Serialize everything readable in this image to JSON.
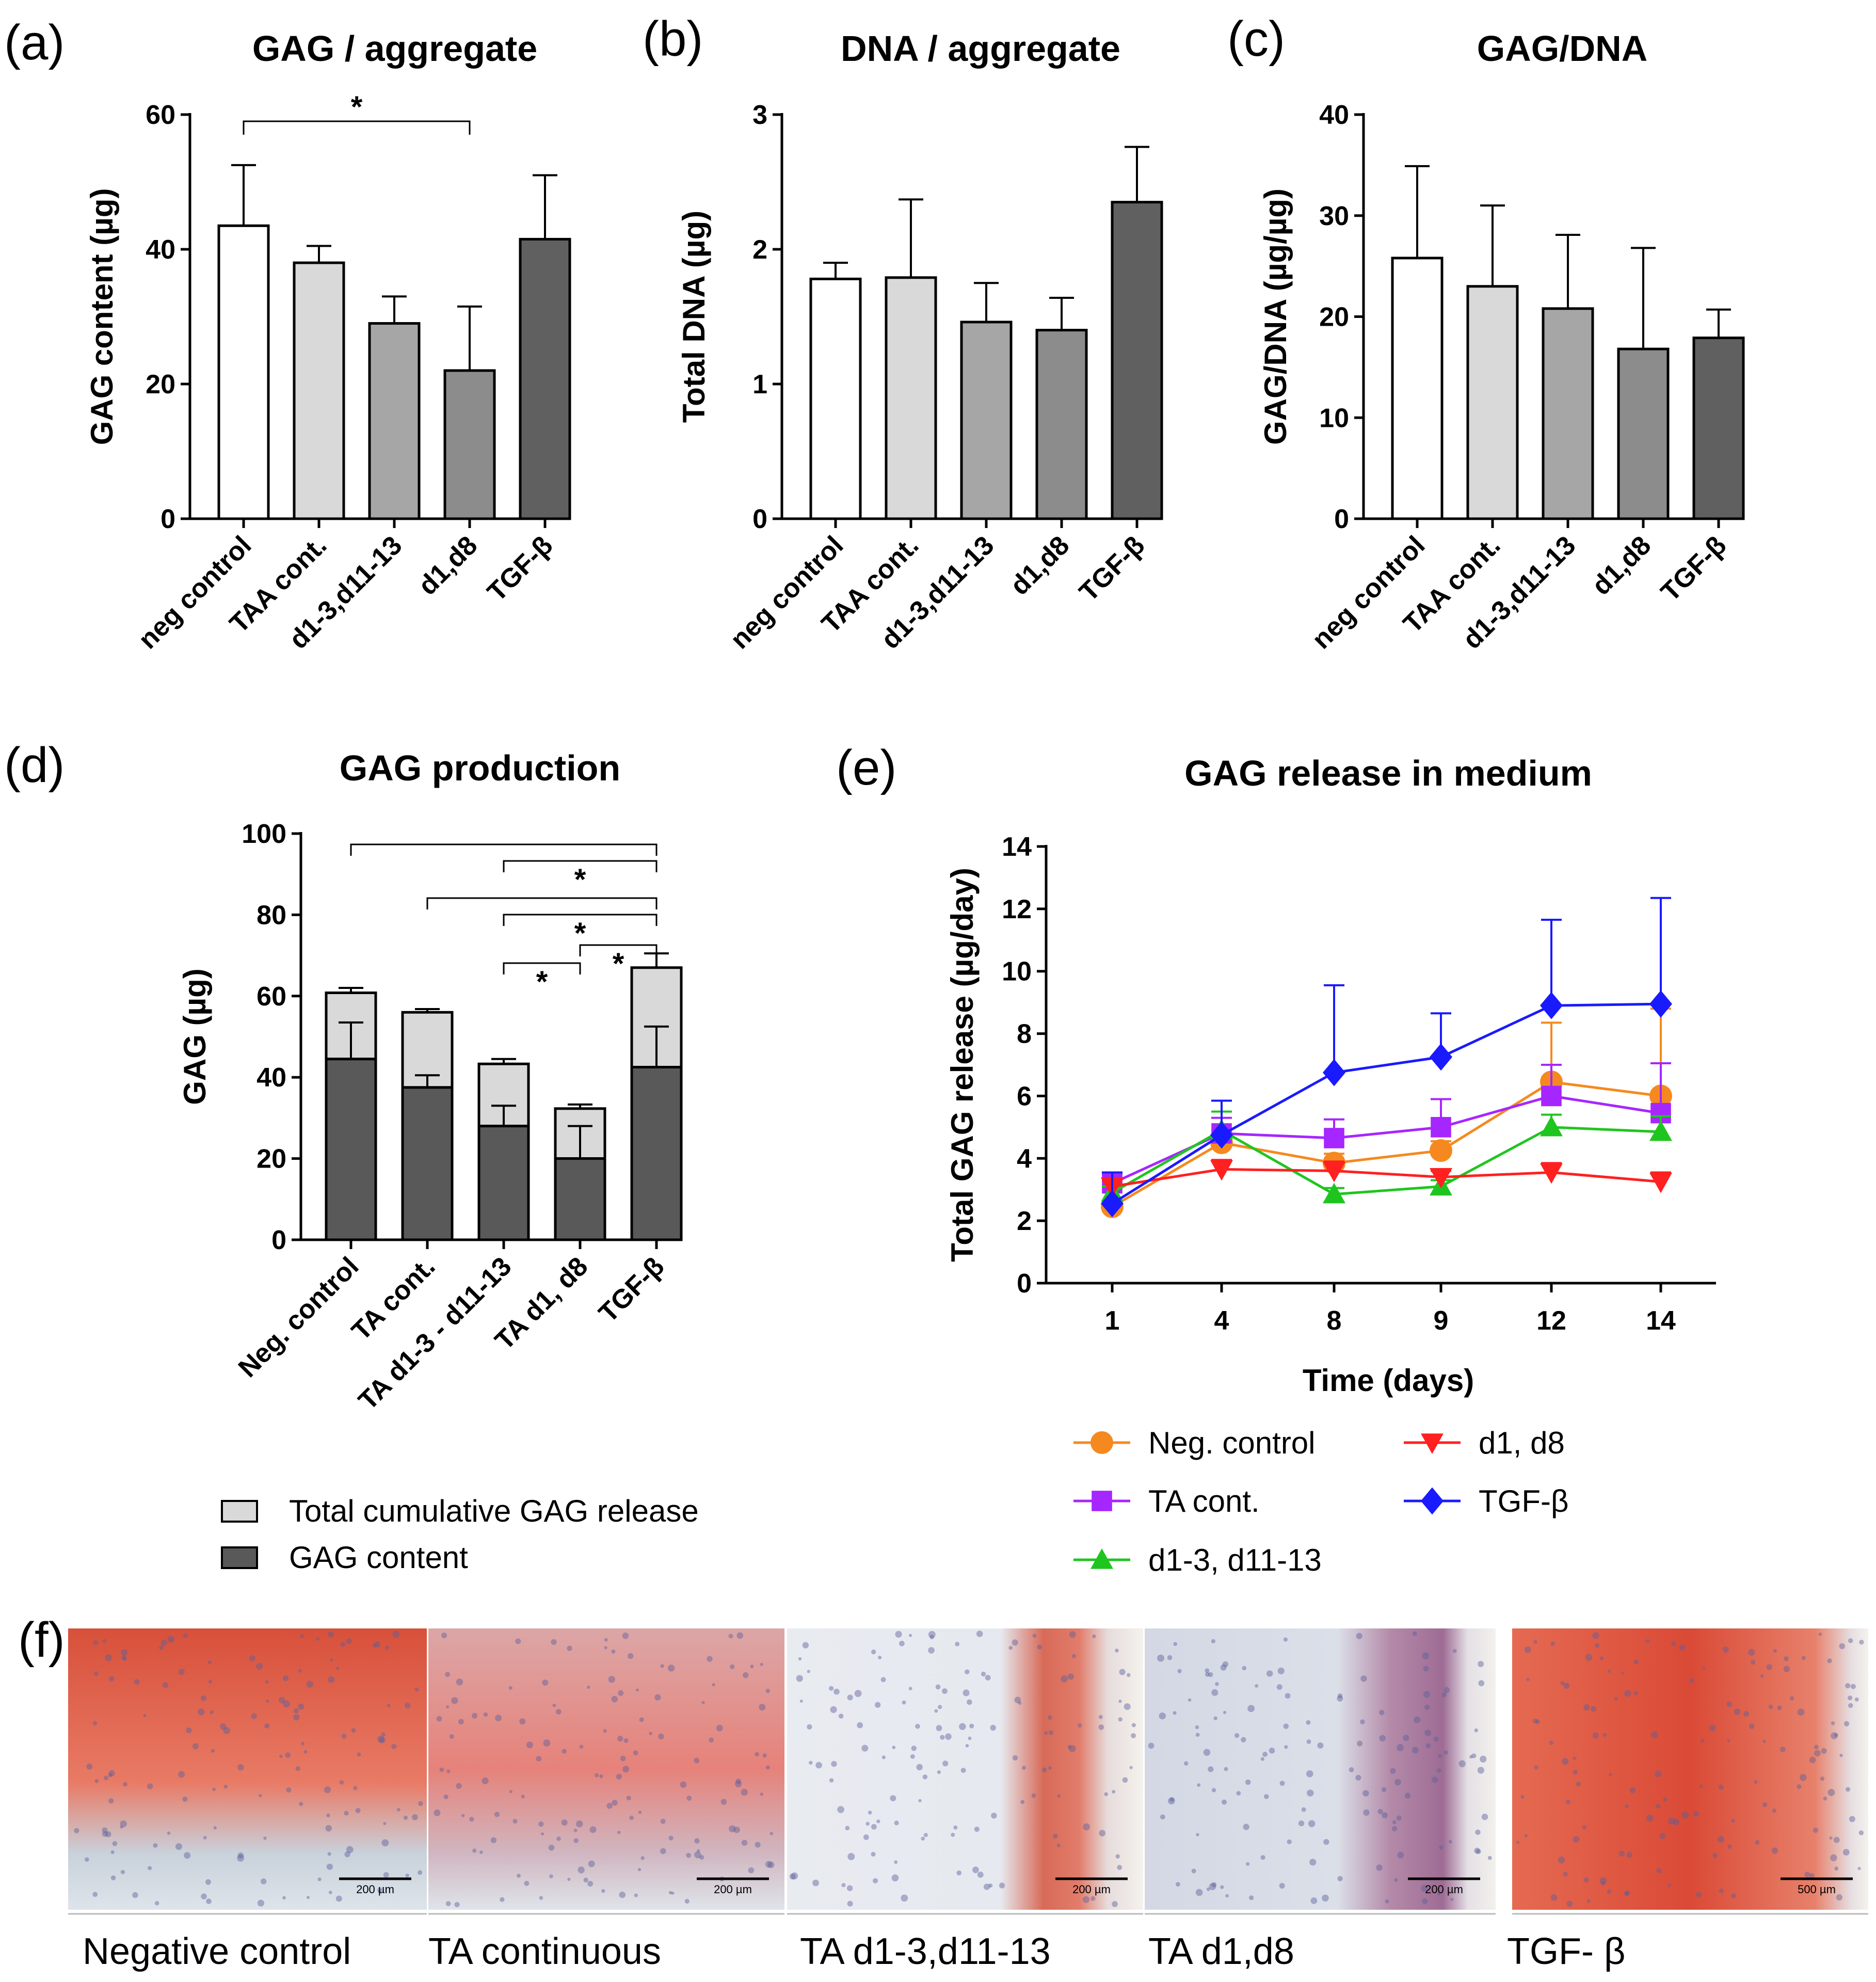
{
  "panels": {
    "a": {
      "label": "(a)"
    },
    "b": {
      "label": "(b)"
    },
    "c": {
      "label": "(c)"
    },
    "d": {
      "label": "(d)"
    },
    "e": {
      "label": "(e)"
    },
    "f": {
      "label": "(f)"
    }
  },
  "chart_data": [
    {
      "id": "a",
      "type": "bar",
      "title": "GAG / aggregate",
      "ylabel": "GAG content (µg)",
      "ylim": [
        0,
        60
      ],
      "yticks": [
        0,
        20,
        40,
        60
      ],
      "categories": [
        "neg control",
        "TAA cont.",
        "d1-3,d11-13",
        "d1,d8",
        "TGF-β"
      ],
      "values": [
        43.5,
        38,
        29,
        22,
        41.5
      ],
      "errors": [
        9,
        2.5,
        4,
        9.5,
        9.5
      ],
      "colors": [
        "#ffffff",
        "#d9d9d9",
        "#a6a6a6",
        "#8c8c8c",
        "#606060"
      ],
      "significance": [
        {
          "from": 0,
          "to": 3,
          "label": "*"
        }
      ]
    },
    {
      "id": "b",
      "type": "bar",
      "title": "DNA / aggregate",
      "ylabel": "Total DNA (µg)",
      "ylim": [
        0,
        3
      ],
      "yticks": [
        0,
        1,
        2,
        3
      ],
      "categories": [
        "neg control",
        "TAA cont.",
        "d1-3,d11-13",
        "d1,d8",
        "TGF-β"
      ],
      "values": [
        1.78,
        1.79,
        1.46,
        1.4,
        2.35
      ],
      "errors": [
        0.12,
        0.58,
        0.29,
        0.24,
        0.41
      ],
      "colors": [
        "#ffffff",
        "#d9d9d9",
        "#a6a6a6",
        "#8c8c8c",
        "#606060"
      ]
    },
    {
      "id": "c",
      "type": "bar",
      "title": "GAG/DNA",
      "ylabel": "GAG/DNA (µg/µg)",
      "ylim": [
        0,
        40
      ],
      "yticks": [
        0,
        10,
        20,
        30,
        40
      ],
      "categories": [
        "neg control",
        "TAA cont.",
        "d1-3,d11-13",
        "d1,d8",
        "TGF-β"
      ],
      "values": [
        25.8,
        23.0,
        20.8,
        16.8,
        17.9
      ],
      "errors": [
        9.1,
        8.0,
        7.3,
        10.0,
        2.8
      ],
      "colors": [
        "#ffffff",
        "#d9d9d9",
        "#a6a6a6",
        "#8c8c8c",
        "#606060"
      ]
    },
    {
      "id": "d",
      "type": "bar",
      "stacked": true,
      "title": "GAG production",
      "ylabel": "GAG (µg)",
      "ylim": [
        0,
        100
      ],
      "yticks": [
        0,
        20,
        40,
        60,
        80,
        100
      ],
      "categories": [
        "Neg. control",
        "TA cont.",
        "TA d1-3 - d11-13",
        "TA d1, d8",
        "TGF-β"
      ],
      "series": [
        {
          "name": "GAG content",
          "color": "#595959",
          "values": [
            44.5,
            37.5,
            28,
            20,
            42.5
          ],
          "errors": [
            9,
            3,
            5,
            8,
            10
          ]
        },
        {
          "name": "Total cumulative GAG release",
          "color": "#d9d9d9",
          "values": [
            16.3,
            18.5,
            15.3,
            12.3,
            24.5
          ],
          "errors": [
            1.2,
            0.8,
            1.2,
            1,
            3.5
          ]
        }
      ],
      "significance": [
        {
          "from": 0,
          "to": 4,
          "label": ""
        },
        {
          "from": 2,
          "to": 4,
          "label": "*"
        },
        {
          "from": 1,
          "to": 4,
          "label": ""
        },
        {
          "from": 2,
          "to": 4,
          "label": "*"
        },
        {
          "from": 3,
          "to": 4,
          "label": "*"
        },
        {
          "from": 2,
          "to": 3,
          "label": "*"
        }
      ]
    },
    {
      "id": "e",
      "type": "line",
      "title": "GAG release in medium",
      "xlabel": "Time (days)",
      "ylabel": "Total GAG release (µg/day)",
      "ylim": [
        0,
        14
      ],
      "yticks": [
        0,
        2,
        4,
        6,
        8,
        10,
        12,
        14
      ],
      "x": [
        1,
        4,
        8,
        9,
        12,
        14
      ],
      "series": [
        {
          "name": "Neg. control",
          "color": "#f5891f",
          "marker": "circle",
          "values": [
            2.45,
            4.5,
            3.85,
            4.25,
            6.45,
            6.0
          ],
          "errors": [
            0.2,
            0.4,
            0.3,
            0.3,
            1.9,
            2.8
          ]
        },
        {
          "name": "TA cont.",
          "color": "#a626ff",
          "marker": "square",
          "values": [
            3.2,
            4.8,
            4.65,
            5.0,
            6.0,
            5.45
          ],
          "errors": [
            0.3,
            0.5,
            0.6,
            0.9,
            1.0,
            1.6
          ]
        },
        {
          "name": "d1-3, d11-13",
          "color": "#1fc51f",
          "marker": "triangle-up",
          "values": [
            2.9,
            4.9,
            2.85,
            3.1,
            5.0,
            4.85
          ],
          "errors": [
            0.2,
            0.6,
            0.2,
            0.2,
            0.4,
            0.5
          ]
        },
        {
          "name": "d1, d8",
          "color": "#ff2020",
          "marker": "triangle-down",
          "values": [
            3.1,
            3.65,
            3.6,
            3.4,
            3.55,
            3.25
          ],
          "errors": [
            0.2,
            0.3,
            0.3,
            0.2,
            0.3,
            0.3
          ]
        },
        {
          "name": "TGF-β",
          "color": "#1a1aff",
          "marker": "diamond",
          "values": [
            2.55,
            4.75,
            6.75,
            7.25,
            8.9,
            8.95
          ],
          "errors": [
            1.0,
            1.1,
            2.8,
            1.4,
            2.75,
            3.4
          ]
        }
      ]
    }
  ],
  "histology": {
    "panels": [
      {
        "caption": "Negative control",
        "scale": "200 µm"
      },
      {
        "caption": "TA continuous",
        "scale": "200 µm"
      },
      {
        "caption": "TA d1-3,d11-13",
        "scale": "200 µm"
      },
      {
        "caption": "TA d1,d8",
        "scale": "200 µm"
      },
      {
        "caption": "TGF- β",
        "scale": "500 µm"
      }
    ]
  }
}
